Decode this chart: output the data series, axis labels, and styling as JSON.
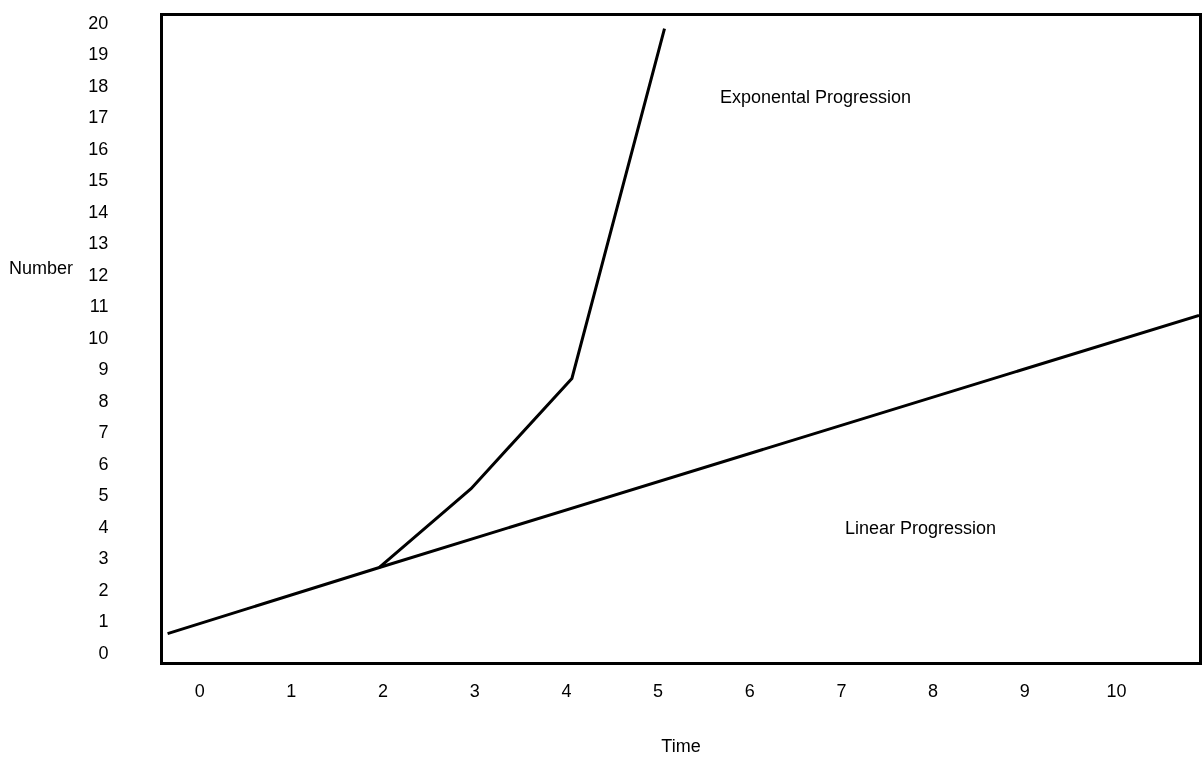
{
  "chart_data": {
    "type": "line",
    "xlabel": "Time",
    "ylabel": "Number",
    "xlim": [
      -0.4,
      10.9
    ],
    "xticks": [
      0,
      1,
      2,
      3,
      4,
      5,
      6,
      7,
      8,
      9,
      10
    ],
    "ylim": [
      -0.3,
      20.2
    ],
    "yticks": [
      0,
      1,
      2,
      3,
      4,
      5,
      6,
      7,
      8,
      9,
      10,
      11,
      12,
      13,
      14,
      15,
      16,
      17,
      18,
      19,
      20
    ],
    "annotations": [
      "Exponental Progression",
      "Linear Progression"
    ],
    "grid": false,
    "legend": false,
    "marker": "none",
    "line_style": "solid",
    "series": [
      {
        "color": "#000000",
        "x": [
          1.96,
          2.96,
          4.06,
          5.07
        ],
        "values": [
          2.7,
          5.2,
          8.7,
          19.8
        ]
      },
      {
        "color": "#000000",
        "x": [
          -0.35,
          1.96,
          10.9
        ],
        "values": [
          0.6,
          2.7,
          10.7
        ]
      }
    ]
  }
}
